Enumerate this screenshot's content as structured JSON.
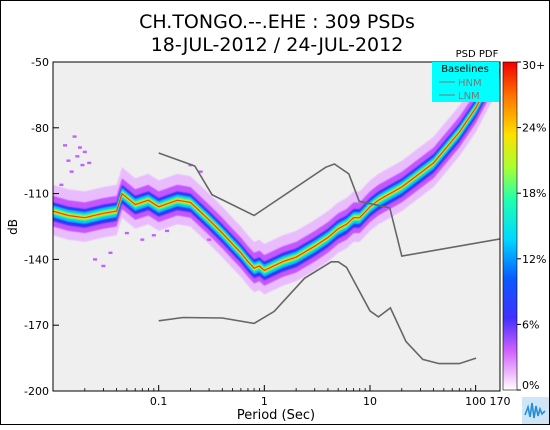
{
  "chart_data": {
    "type": "heatmap",
    "title": "CH.TONGO.--.EHE : 309 PSDs",
    "subtitle": "18-JUL-2012 / 24-JUL-2012",
    "xlabel": "Period (Sec)",
    "ylabel": "dB",
    "x_scale": "log",
    "xlim": [
      0.01,
      170
    ],
    "ylim": [
      -200,
      -50
    ],
    "x_tick_labels": [
      "0.1",
      "1",
      "10",
      "100",
      "170"
    ],
    "x_ticks": [
      0.1,
      1,
      10,
      100,
      170
    ],
    "y_tick_labels": [
      "-50",
      "-80",
      "-110",
      "-140",
      "-170",
      "-200"
    ],
    "y_ticks": [
      -50,
      -80,
      -110,
      -140,
      -170,
      -200
    ],
    "colorbar": {
      "title": "PSD PDF",
      "tick_labels": [
        "30+",
        "24%",
        "18%",
        "12%",
        "6%",
        "0%"
      ],
      "range_percent": [
        0,
        30
      ]
    },
    "legend": {
      "title": "Baselines",
      "items": [
        "HNM",
        "LNM"
      ],
      "placement": "top-right",
      "background": "#00ffff"
    },
    "series": [
      {
        "name": "HNM",
        "color": "#666666",
        "x": [
          0.1,
          0.22,
          0.32,
          0.8,
          3.8,
          4.6,
          6.3,
          7.9,
          15.4,
          20,
          354.8
        ],
        "y": [
          -91.5,
          -97.4,
          -110.5,
          -120,
          -98,
          -96.5,
          -101,
          -113.5,
          -116.5,
          -138.5,
          -128
        ]
      },
      {
        "name": "LNM",
        "color": "#666666",
        "x": [
          0.1,
          0.17,
          0.4,
          0.8,
          1.24,
          2.4,
          4.3,
          5,
          6,
          10,
          12,
          15.6,
          21.9,
          31.6,
          45,
          70,
          101
        ],
        "y": [
          -168,
          -166.5,
          -166.7,
          -169.2,
          -163.7,
          -148.6,
          -141.1,
          -141.1,
          -143.6,
          -163.5,
          -166.2,
          -162.1,
          -177.5,
          -185.6,
          -187.5,
          -187.5,
          -185
        ]
      }
    ],
    "pdf_mode": {
      "period": [
        0.01,
        0.014,
        0.02,
        0.03,
        0.04,
        0.045,
        0.06,
        0.08,
        0.1,
        0.15,
        0.2,
        0.3,
        0.4,
        0.5,
        0.6,
        0.7,
        0.8,
        0.9,
        1,
        1.5,
        2,
        3,
        4,
        5,
        6,
        7,
        8,
        10,
        12,
        20,
        40,
        70,
        100,
        170
      ],
      "db": [
        -118,
        -120,
        -121,
        -119,
        -118,
        -110,
        -115,
        -113,
        -116,
        -113,
        -114,
        -122,
        -128,
        -133,
        -137,
        -141,
        -144,
        -143,
        -145,
        -141,
        -139,
        -134,
        -130,
        -126,
        -124,
        -121,
        -121,
        -116,
        -113,
        -107,
        -96,
        -82,
        -71,
        -50
      ]
    }
  }
}
